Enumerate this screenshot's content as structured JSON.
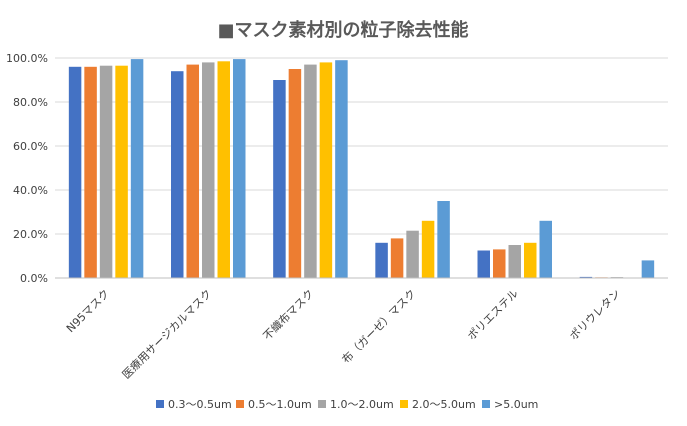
{
  "chart_data": {
    "type": "bar",
    "title": "■マスク素材別の粒子除去性能",
    "xlabel": "",
    "ylabel": "",
    "ylim": [
      0,
      100
    ],
    "yticks": [
      "0.0%",
      "20.0%",
      "40.0%",
      "60.0%",
      "80.0%",
      "100.0%"
    ],
    "grid": true,
    "legend_position": "bottom",
    "categories": [
      "N95マスク",
      "医療用サージカルマスク",
      "不織布マスク",
      "布（ガーゼ）マスク",
      "ポリエステル",
      "ポリウレタン"
    ],
    "series": [
      {
        "name": "0.3～0.5um",
        "color": "#4472C4",
        "values": [
          96,
          94,
          90,
          16,
          12.5,
          0.5
        ]
      },
      {
        "name": "0.5～1.0um",
        "color": "#ED7D31",
        "values": [
          96,
          97,
          95,
          18,
          13,
          0.3
        ]
      },
      {
        "name": "1.0～2.0um",
        "color": "#A5A5A5",
        "values": [
          96.5,
          98,
          97,
          21.5,
          15,
          0.4
        ]
      },
      {
        "name": "2.0～5.0um",
        "color": "#FFC000",
        "values": [
          96.5,
          98.5,
          98,
          26,
          16,
          0.2
        ]
      },
      {
        "name": ">5.0um",
        "color": "#5B9BD5",
        "values": [
          99.5,
          99.5,
          99,
          35,
          26,
          8
        ]
      }
    ]
  }
}
